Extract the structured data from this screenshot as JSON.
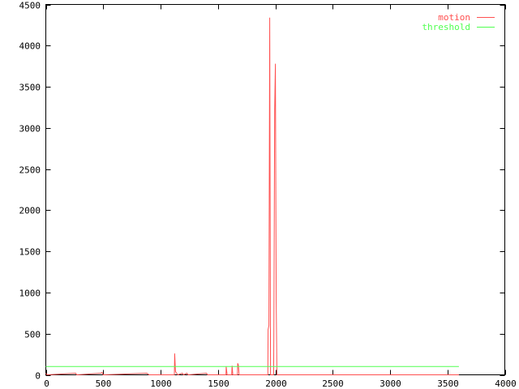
{
  "chart_data": {
    "type": "line",
    "title": "",
    "xlabel": "",
    "ylabel": "",
    "xlim": [
      0,
      4000
    ],
    "ylim": [
      0,
      4500
    ],
    "xticks": [
      0,
      500,
      1000,
      1500,
      2000,
      2500,
      3000,
      3500,
      4000
    ],
    "yticks": [
      0,
      500,
      1000,
      1500,
      2000,
      2500,
      3000,
      3500,
      4000,
      4500
    ],
    "grid": false,
    "legend": "top-right",
    "series": [
      {
        "name": "motion",
        "color": "#ff5050",
        "points": [
          [
            0,
            20
          ],
          [
            10,
            0
          ],
          [
            260,
            20
          ],
          [
            270,
            0
          ],
          [
            480,
            20
          ],
          [
            490,
            30
          ],
          [
            500,
            0
          ],
          [
            880,
            20
          ],
          [
            900,
            0
          ],
          [
            1120,
            0
          ],
          [
            1123,
            260
          ],
          [
            1130,
            40
          ],
          [
            1140,
            20
          ],
          [
            1150,
            0
          ],
          [
            1190,
            20
          ],
          [
            1200,
            0
          ],
          [
            1230,
            20
          ],
          [
            1240,
            0
          ],
          [
            1400,
            20
          ],
          [
            1410,
            0
          ],
          [
            1570,
            0
          ],
          [
            1572,
            100
          ],
          [
            1580,
            0
          ],
          [
            1620,
            0
          ],
          [
            1623,
            110
          ],
          [
            1630,
            0
          ],
          [
            1670,
            0
          ],
          [
            1672,
            140
          ],
          [
            1678,
            120
          ],
          [
            1685,
            0
          ],
          [
            1935,
            0
          ],
          [
            1937,
            550
          ],
          [
            1944,
            600
          ],
          [
            1951,
            4340
          ],
          [
            1958,
            0
          ],
          [
            1985,
            0
          ],
          [
            1987,
            450
          ],
          [
            1994,
            3230
          ],
          [
            2001,
            3780
          ],
          [
            2008,
            900
          ],
          [
            2014,
            0
          ],
          [
            3600,
            0
          ]
        ]
      },
      {
        "name": "threshold",
        "color": "#50ff50",
        "points": [
          [
            0,
            100
          ],
          [
            3600,
            100
          ]
        ]
      }
    ]
  }
}
